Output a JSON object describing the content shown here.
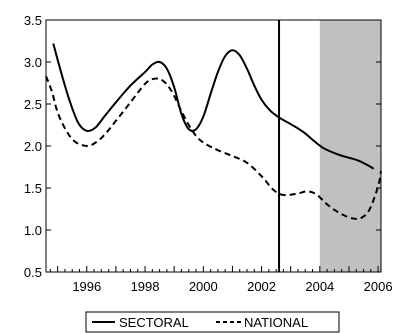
{
  "chart_data": {
    "type": "line",
    "title": "",
    "xlabel": "",
    "ylabel": "",
    "xlim": [
      1994.6,
      2006.1
    ],
    "ylim": [
      0.5,
      3.5
    ],
    "x_ticks": [
      1996,
      1998,
      2000,
      2002,
      2004,
      2006
    ],
    "x_tick_labels": [
      "1996",
      "1998",
      "2000",
      "2002",
      "2004",
      "2006"
    ],
    "y_ticks": [
      0.5,
      1.0,
      1.5,
      2.0,
      2.5,
      3.0,
      3.5
    ],
    "y_tick_labels": [
      "0.5",
      "1.0",
      "1.5",
      "2.0",
      "2.5",
      "3.0",
      "3.5"
    ],
    "grid": false,
    "legend_position": "bottom",
    "vertical_line_x": 2002.6,
    "shaded_region": [
      2004.0,
      2006.1
    ],
    "shaded_color": "#c0c0c0",
    "series": [
      {
        "name": "SECTORAL",
        "style": "solid",
        "color": "#000000",
        "x": [
          1994.85,
          1995.1,
          1995.4,
          1995.7,
          1996.0,
          1996.3,
          1996.6,
          1997.0,
          1997.5,
          1998.0,
          1998.25,
          1998.5,
          1998.75,
          1999.0,
          1999.25,
          1999.5,
          1999.75,
          2000.0,
          2000.25,
          2000.5,
          2000.75,
          2001.0,
          2001.25,
          2001.5,
          2001.75,
          2002.0,
          2002.3,
          2002.6,
          2002.9,
          2003.2,
          2003.5,
          2003.8,
          2004.1,
          2004.4,
          2004.7,
          2005.0,
          2005.3,
          2005.6,
          2005.85
        ],
        "y": [
          3.22,
          2.9,
          2.55,
          2.28,
          2.18,
          2.22,
          2.35,
          2.52,
          2.72,
          2.88,
          2.97,
          3.0,
          2.92,
          2.7,
          2.38,
          2.2,
          2.2,
          2.35,
          2.62,
          2.88,
          3.07,
          3.14,
          3.08,
          2.92,
          2.72,
          2.55,
          2.42,
          2.34,
          2.28,
          2.22,
          2.15,
          2.06,
          1.98,
          1.93,
          1.89,
          1.86,
          1.83,
          1.78,
          1.73
        ]
      },
      {
        "name": "NATIONAL",
        "style": "dashed",
        "color": "#000000",
        "x": [
          1994.6,
          1994.8,
          1995.0,
          1995.3,
          1995.6,
          1996.0,
          1996.3,
          1996.6,
          1997.0,
          1997.5,
          1998.0,
          1998.3,
          1998.6,
          1998.9,
          1999.2,
          1999.5,
          1999.8,
          2000.1,
          2000.5,
          2001.0,
          2001.5,
          2002.0,
          2002.4,
          2002.7,
          2003.0,
          2003.3,
          2003.6,
          2003.9,
          2004.2,
          2004.5,
          2004.8,
          2005.1,
          2005.4,
          2005.7,
          2006.0,
          2006.1
        ],
        "y": [
          2.83,
          2.65,
          2.4,
          2.18,
          2.05,
          2.0,
          2.04,
          2.13,
          2.3,
          2.52,
          2.74,
          2.8,
          2.78,
          2.66,
          2.45,
          2.25,
          2.1,
          2.02,
          1.95,
          1.88,
          1.8,
          1.64,
          1.48,
          1.42,
          1.42,
          1.44,
          1.46,
          1.42,
          1.32,
          1.24,
          1.18,
          1.14,
          1.14,
          1.24,
          1.52,
          1.7
        ]
      }
    ]
  }
}
